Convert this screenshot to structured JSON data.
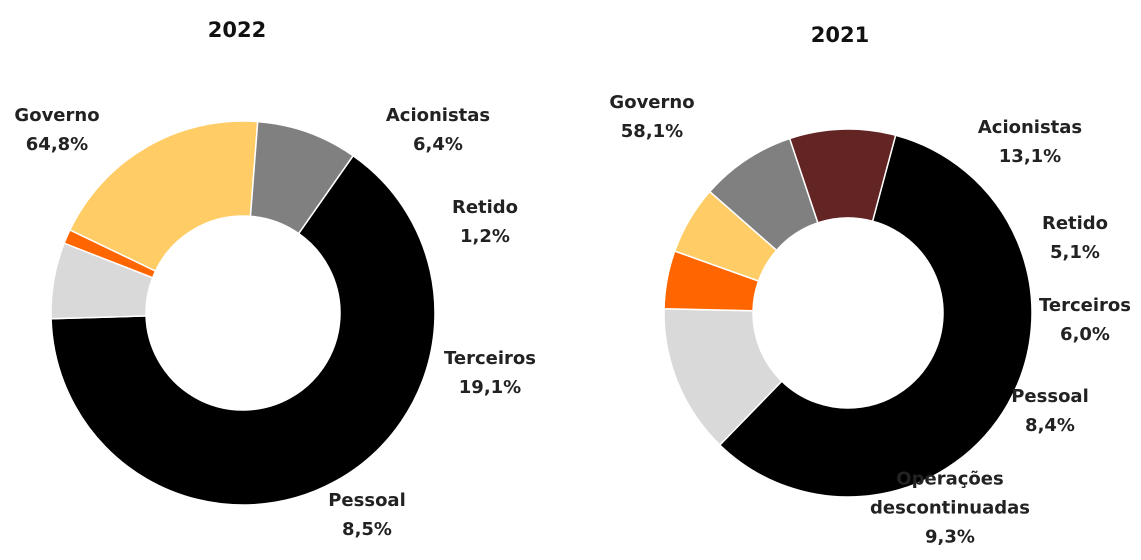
{
  "chart_data": [
    {
      "type": "donut",
      "title": "2022",
      "categories": [
        "Governo",
        "Acionistas",
        "Retido",
        "Terceiros",
        "Pessoal"
      ],
      "values": [
        64.8,
        6.4,
        1.2,
        19.1,
        8.5
      ],
      "value_labels": [
        "64,8%",
        "6,4%",
        "1,2%",
        "19,1%",
        "8,5%"
      ],
      "colors": [
        "#000000",
        "#d9d9d9",
        "#ff6600",
        "#ffcc66",
        "#808080"
      ]
    },
    {
      "type": "donut",
      "title": "2021",
      "categories": [
        "Governo",
        "Acionistas",
        "Retido",
        "Terceiros",
        "Pessoal",
        "Operações descontinuadas"
      ],
      "values": [
        58.1,
        13.1,
        5.1,
        6.0,
        8.4,
        9.3
      ],
      "value_labels": [
        "58,1%",
        "13,1%",
        "5,1%",
        "6,0%",
        "8,4%",
        "9,3%"
      ],
      "colors": [
        "#000000",
        "#d9d9d9",
        "#ff6600",
        "#ffcc66",
        "#808080",
        "#632523"
      ]
    }
  ]
}
